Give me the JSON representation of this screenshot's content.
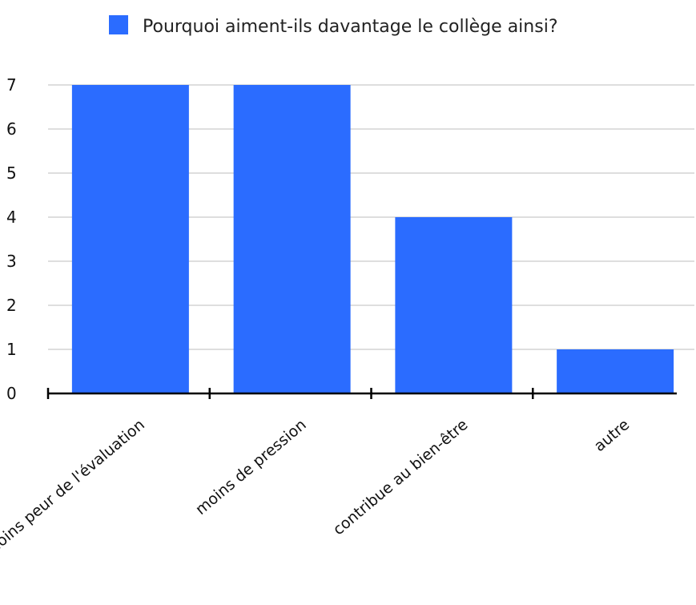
{
  "chart_data": {
    "type": "bar",
    "categories": [
      "moins peur de l'évaluation",
      "moins  de pression",
      "contribue au bien-être",
      "autre"
    ],
    "series": [
      {
        "name": "Pourquoi aiment-ils davantage le collège ainsi?",
        "values": [
          7,
          7,
          4,
          1
        ],
        "color": "#2B6CFF"
      }
    ],
    "yticks": [
      "0",
      "1",
      "2",
      "3",
      "4",
      "5",
      "6",
      "7"
    ],
    "ylim": [
      0,
      7
    ],
    "grid": true,
    "legend_position": "top-center"
  }
}
